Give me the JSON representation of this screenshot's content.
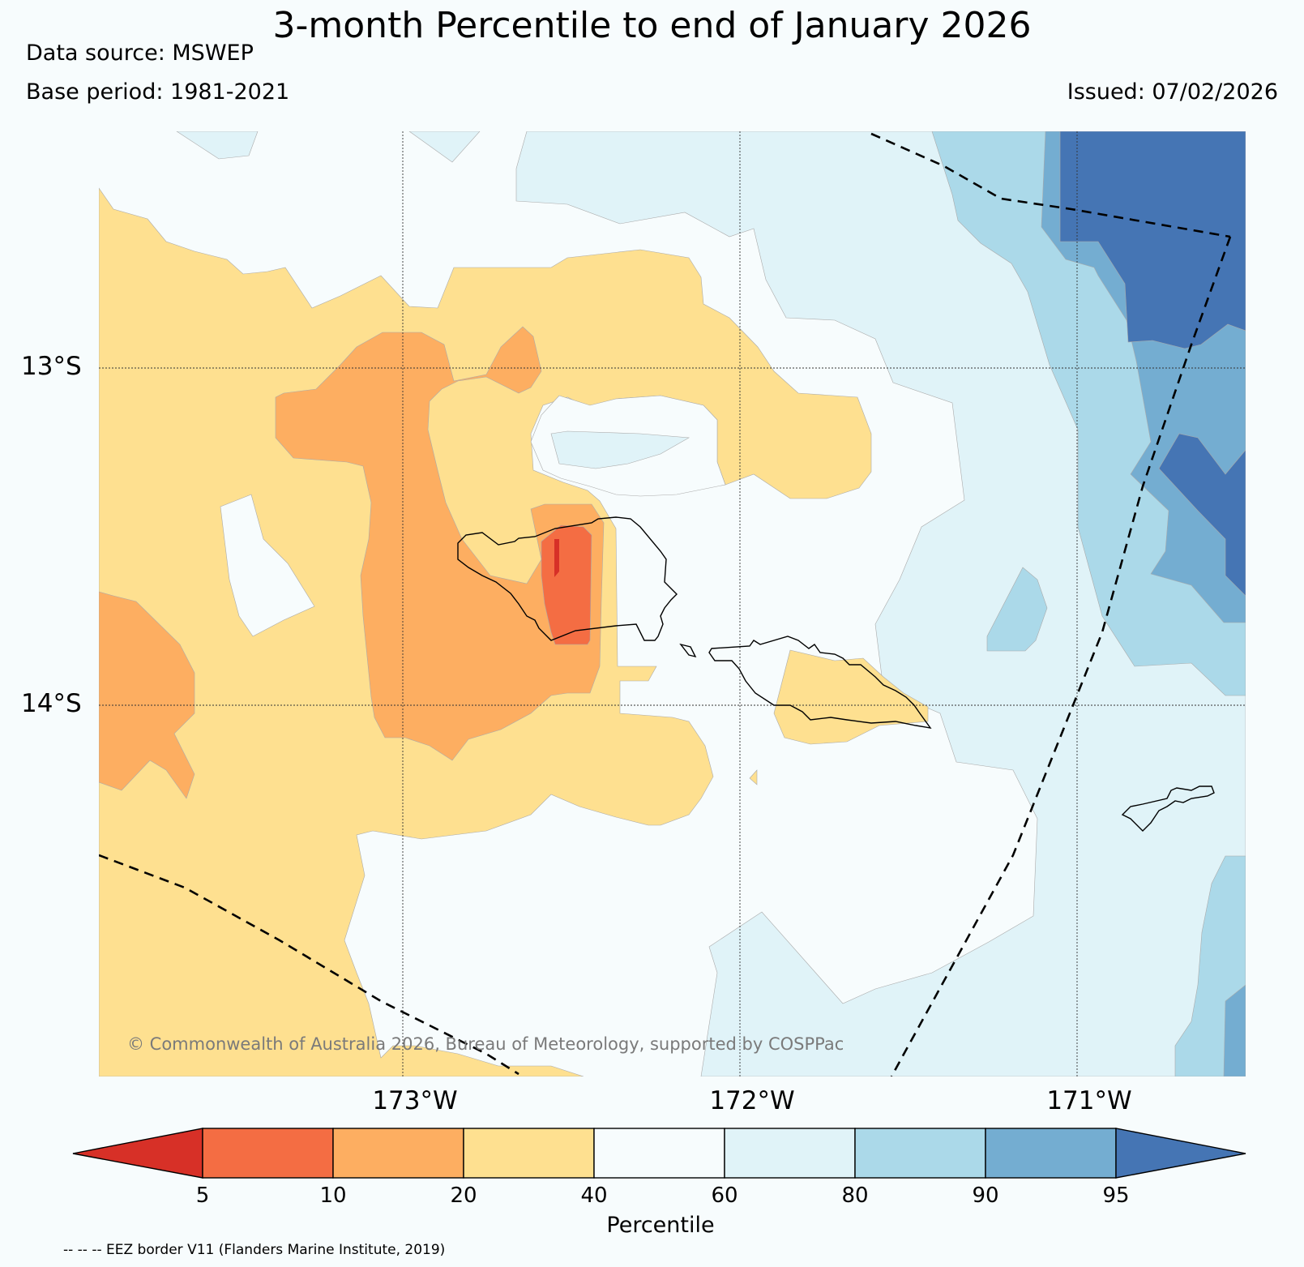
{
  "header": {
    "title": "3-month Percentile to end of January 2026",
    "data_source": "Data source: MSWEP",
    "base_period": "Base period: 1981-2021",
    "issued": "Issued: 07/02/2026"
  },
  "map": {
    "region": "Samoa and surrounding waters",
    "lat_labels": [
      "13°S",
      "14°S"
    ],
    "lon_labels": [
      "173°W",
      "172°W",
      "171°W"
    ],
    "copyright": "© Commonwealth of Australia 2026, Bureau of Meteorology, supported by COSPPac",
    "colors": {
      "below_5": "#d73027",
      "p5_10": "#f46d43",
      "p10_20": "#fdae61",
      "p20_40": "#fee090",
      "p40_60": "#f7fcfd",
      "p60_80": "#e0f3f8",
      "p80_90": "#abd9e9",
      "p90_95": "#74add1",
      "above_95": "#4575b4"
    }
  },
  "colorbar": {
    "label": "Percentile",
    "ticks": [
      "5",
      "10",
      "20",
      "40",
      "60",
      "80",
      "90",
      "95"
    ],
    "colors": [
      "#d73027",
      "#f46d43",
      "#fdae61",
      "#fee090",
      "#f7fcfd",
      "#e0f3f8",
      "#abd9e9",
      "#74add1",
      "#4575b4"
    ]
  },
  "footer": {
    "eez_note": "-- -- -- EEZ border V11 (Flanders Marine Institute, 2019)"
  }
}
